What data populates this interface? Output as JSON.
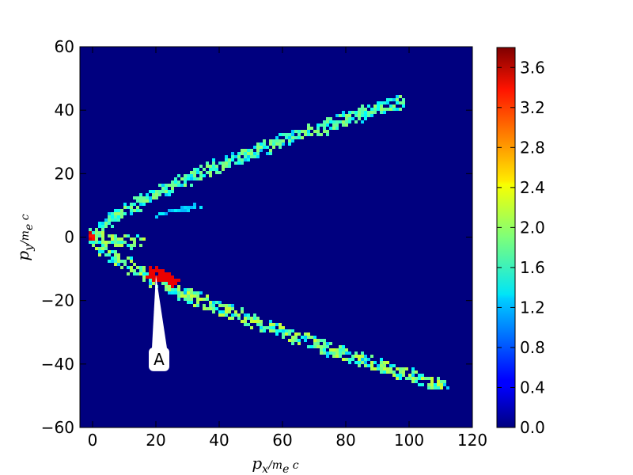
{
  "chart_data": {
    "type": "heatmap",
    "title": "",
    "xlabel": "p_x/m_e c",
    "ylabel": "p_y/m_e c",
    "xlim": [
      -4,
      120
    ],
    "ylim": [
      -60,
      60
    ],
    "xticks": [
      0,
      20,
      40,
      60,
      80,
      100,
      120
    ],
    "yticks": [
      -60,
      -40,
      -20,
      0,
      20,
      40,
      60
    ],
    "colormap": "jet",
    "colorbar": {
      "range": [
        0.0,
        3.8
      ],
      "ticks": [
        0.0,
        0.4,
        0.8,
        1.2,
        1.6,
        2.0,
        2.4,
        2.8,
        3.2,
        3.6
      ],
      "tick_labels": [
        "0.0",
        "0.4",
        "0.8",
        "1.2",
        "1.6",
        "2.0",
        "2.4",
        "2.8",
        "3.2",
        "3.6"
      ]
    },
    "background_value": 0.0,
    "structures": [
      {
        "name": "upper-branch",
        "from": [
          0,
          0
        ],
        "to": [
          98,
          43
        ],
        "value_range": [
          1.2,
          2.0
        ]
      },
      {
        "name": "lower-branch",
        "from": [
          0,
          0
        ],
        "to": [
          111,
          -47
        ],
        "value_range": [
          1.2,
          2.2
        ]
      },
      {
        "name": "central-horizontal",
        "from": [
          0,
          0
        ],
        "to": [
          15,
          -2
        ],
        "value_range": [
          1.4,
          2.2
        ]
      },
      {
        "name": "faint-inner-branch",
        "from": [
          20,
          7
        ],
        "to": [
          35,
          10
        ],
        "value_range": [
          1.0,
          1.4
        ]
      },
      {
        "name": "hotspot-origin",
        "at": [
          0,
          0
        ],
        "value": 3.6
      },
      {
        "name": "hotspot-A",
        "from": [
          18,
          -11
        ],
        "to": [
          26,
          -14
        ],
        "value": 3.4
      }
    ],
    "annotations": [
      {
        "text": "A",
        "x": 21,
        "y": -38.5,
        "points_to": [
          20,
          -12
        ]
      }
    ]
  }
}
